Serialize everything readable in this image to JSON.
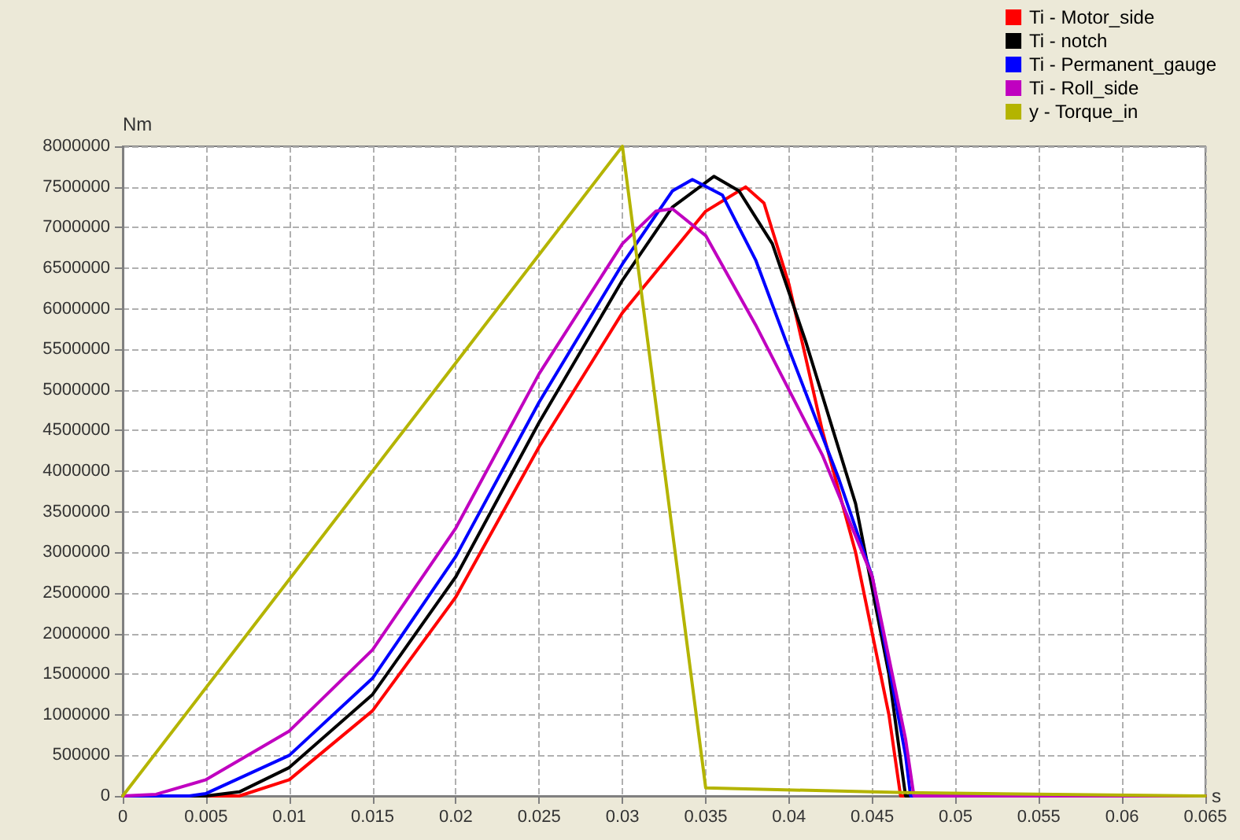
{
  "chart_data": {
    "type": "line",
    "xlabel": "s",
    "ylabel": "Nm",
    "xlim": [
      0,
      0.065
    ],
    "xticks": [
      0,
      0.005,
      0.01,
      0.015,
      0.02,
      0.025,
      0.03,
      0.035,
      0.04,
      0.045,
      0.05,
      0.055,
      0.06,
      0.065
    ],
    "ylim": [
      0,
      8000000
    ],
    "yticks": [
      0,
      500000,
      1000000,
      1500000,
      2000000,
      2500000,
      3000000,
      3500000,
      4000000,
      4500000,
      5000000,
      5500000,
      6000000,
      6500000,
      7000000,
      7500000,
      8000000
    ],
    "grid": true,
    "legend": "top right",
    "marker": "none",
    "line_style": "solid",
    "series": [
      {
        "name": "Ti - Motor_side",
        "color": "#ff0000",
        "x": [
          0,
          0.007,
          0.01,
          0.015,
          0.02,
          0.025,
          0.03,
          0.035,
          0.0374,
          0.0385,
          0.04,
          0.042,
          0.044,
          0.046,
          0.0467,
          0.065
        ],
        "values": [
          0,
          0,
          200000,
          1050000,
          2450000,
          4300000,
          5950000,
          7200000,
          7500000,
          7300000,
          6300000,
          4500000,
          3000000,
          1000000,
          0,
          0
        ]
      },
      {
        "name": "Ti - notch",
        "color": "#000000",
        "x": [
          0,
          0.005,
          0.007,
          0.01,
          0.015,
          0.02,
          0.025,
          0.03,
          0.033,
          0.0355,
          0.037,
          0.039,
          0.041,
          0.044,
          0.046,
          0.047,
          0.065
        ],
        "values": [
          0,
          0,
          50000,
          350000,
          1250000,
          2700000,
          4600000,
          6350000,
          7250000,
          7630000,
          7450000,
          6800000,
          5600000,
          3600000,
          1500000,
          0,
          0
        ]
      },
      {
        "name": "Ti - Permanent_gauge",
        "color": "#0000ff",
        "x": [
          0,
          0.004,
          0.005,
          0.01,
          0.015,
          0.02,
          0.025,
          0.03,
          0.033,
          0.0342,
          0.036,
          0.038,
          0.04,
          0.043,
          0.045,
          0.047,
          0.0473,
          0.065
        ],
        "values": [
          0,
          0,
          30000,
          500000,
          1450000,
          2950000,
          4850000,
          6550000,
          7450000,
          7590000,
          7400000,
          6600000,
          5500000,
          3900000,
          2700000,
          500000,
          0,
          0
        ]
      },
      {
        "name": "Ti - Roll_side",
        "color": "#c000c0",
        "x": [
          0,
          0.002,
          0.005,
          0.01,
          0.015,
          0.02,
          0.025,
          0.03,
          0.032,
          0.033,
          0.035,
          0.038,
          0.042,
          0.045,
          0.047,
          0.0475,
          0.065
        ],
        "values": [
          0,
          20000,
          200000,
          800000,
          1800000,
          3300000,
          5200000,
          6800000,
          7200000,
          7230000,
          6900000,
          5800000,
          4200000,
          2700000,
          700000,
          0,
          0
        ]
      },
      {
        "name": "y - Torque_in",
        "color": "#b4b400",
        "x": [
          0,
          0.03,
          0.035,
          0.047,
          0.065
        ],
        "values": [
          0,
          8000000,
          100000,
          40000,
          0
        ]
      }
    ]
  }
}
